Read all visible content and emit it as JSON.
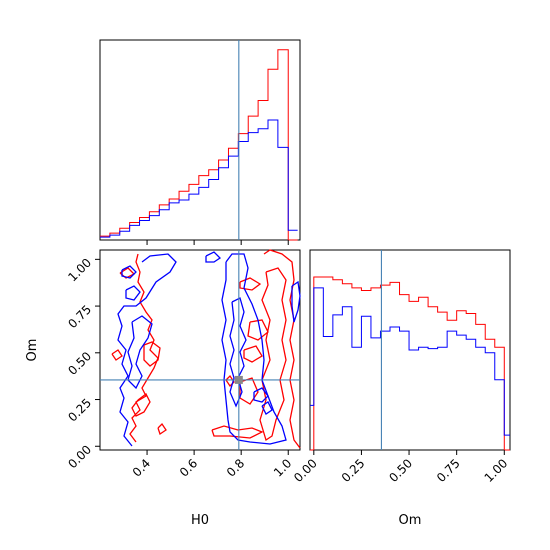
{
  "chart_data": {
    "type": "corner",
    "parameters": [
      "H0",
      "Om"
    ],
    "truth": {
      "H0": 0.79,
      "Om": 0.355,
      "color": "#4682b4"
    },
    "series": [
      {
        "color": "#ff0000"
      },
      {
        "color": "#0000ff"
      }
    ],
    "panels": {
      "hist_H0": {
        "type": "histogram",
        "bin_edges": [
          0.2,
          0.242,
          0.284,
          0.326,
          0.368,
          0.41,
          0.452,
          0.494,
          0.536,
          0.578,
          0.62,
          0.662,
          0.704,
          0.746,
          0.788,
          0.83,
          0.872,
          0.914,
          0.956,
          1.0,
          1.04
        ],
        "counts": [
          [
            0.4,
            0.7,
            1.2,
            1.8,
            2.3,
            2.9,
            3.6,
            4.2,
            5.0,
            5.7,
            6.6,
            7.2,
            8.2,
            9.4,
            10.9,
            12.7,
            14.3,
            17.5,
            19.5,
            0,
            0
          ],
          [
            0.3,
            0.5,
            0.9,
            1.5,
            2.0,
            2.5,
            3.1,
            3.8,
            4.1,
            4.7,
            5.4,
            6.2,
            7.4,
            8.6,
            10.1,
            11.0,
            11.4,
            12.3,
            9.5,
            1.0,
            1.0
          ]
        ],
        "xlim": [
          0.2,
          1.05
        ]
      },
      "hist_Om": {
        "type": "histogram",
        "bin_edges": [
          -0.02,
          0.0,
          0.05,
          0.1,
          0.15,
          0.2,
          0.25,
          0.3,
          0.35,
          0.4,
          0.45,
          0.5,
          0.55,
          0.6,
          0.65,
          0.7,
          0.75,
          0.8,
          0.85,
          0.9,
          0.95,
          1.0,
          1.03
        ],
        "counts": [
          [
            0,
            12.8,
            12.8,
            12.6,
            12.3,
            12.0,
            11.8,
            12.0,
            12.2,
            12.4,
            11.5,
            11.0,
            11.3,
            10.6,
            10.2,
            9.6,
            10.3,
            10.1,
            9.3,
            8.2,
            7.6,
            0,
            0
          ],
          [
            3.3,
            12.0,
            8.4,
            10.0,
            10.6,
            7.6,
            9.9,
            8.3,
            8.8,
            9.1,
            8.8,
            7.4,
            7.6,
            7.5,
            7.6,
            8.8,
            8.5,
            8.2,
            7.6,
            7.2,
            5.2,
            1.1,
            1.1
          ]
        ],
        "xlim": [
          -0.02,
          1.03
        ],
        "xticks": [
          "0.00",
          "0.25",
          "0.50",
          "0.75",
          "1.00"
        ]
      },
      "joint_H0_Om": {
        "type": "contour",
        "xlim": [
          0.2,
          1.05
        ],
        "ylim": [
          -0.02,
          1.05
        ],
        "xticks": [
          "0.4",
          "0.6",
          "0.8",
          "1.0"
        ],
        "yticks": [
          "0.00",
          "0.25",
          "0.50",
          "0.75",
          "1.00"
        ],
        "xlabel": "H0",
        "ylabel": "Om"
      }
    }
  }
}
